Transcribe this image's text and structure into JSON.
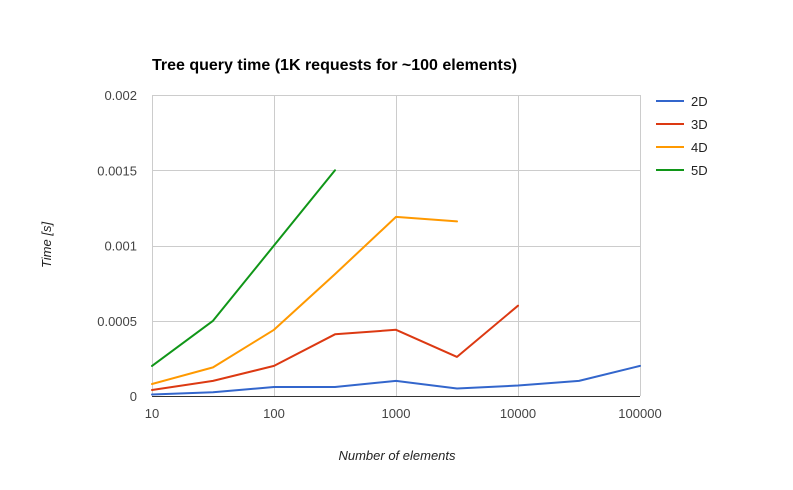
{
  "chart_data": {
    "type": "line",
    "title": "Tree query time (1K requests for ~100 elements)",
    "xlabel": "Number of elements",
    "ylabel": "Time [s]",
    "x_scale": "log",
    "xlim": [
      10,
      100000
    ],
    "ylim": [
      0,
      0.002
    ],
    "x_ticks": [
      10,
      100,
      1000,
      10000,
      100000
    ],
    "x_tick_labels": [
      "10",
      "100",
      "1000",
      "10000",
      "100000"
    ],
    "y_ticks": [
      0,
      0.0005,
      0.001,
      0.0015,
      0.002
    ],
    "y_tick_labels": [
      "0",
      "0.0005",
      "0.001",
      "0.0015",
      "0.002"
    ],
    "grid": true,
    "legend_position": "right",
    "series": [
      {
        "name": "2D",
        "color": "#3366cc",
        "points": [
          [
            10,
            1e-05
          ],
          [
            31.6,
            2.5e-05
          ],
          [
            100,
            6e-05
          ],
          [
            316,
            6e-05
          ],
          [
            1000,
            0.0001
          ],
          [
            3162,
            5e-05
          ],
          [
            10000,
            7e-05
          ],
          [
            31623,
            0.0001
          ],
          [
            100000,
            0.0002
          ]
        ]
      },
      {
        "name": "3D",
        "color": "#dc3912",
        "points": [
          [
            10,
            4e-05
          ],
          [
            31.6,
            0.0001
          ],
          [
            100,
            0.0002
          ],
          [
            316,
            0.00041
          ],
          [
            1000,
            0.00044
          ],
          [
            3162,
            0.00026
          ],
          [
            10000,
            0.0006
          ]
        ]
      },
      {
        "name": "4D",
        "color": "#ff9900",
        "points": [
          [
            10,
            8e-05
          ],
          [
            31.6,
            0.00019
          ],
          [
            100,
            0.00044
          ],
          [
            316,
            0.00081
          ],
          [
            1000,
            0.00119
          ],
          [
            3162,
            0.00116
          ]
        ]
      },
      {
        "name": "5D",
        "color": "#109618",
        "points": [
          [
            10,
            0.0002
          ],
          [
            31.6,
            0.0005
          ],
          [
            100,
            0.001
          ],
          [
            316,
            0.0015
          ]
        ]
      }
    ]
  }
}
